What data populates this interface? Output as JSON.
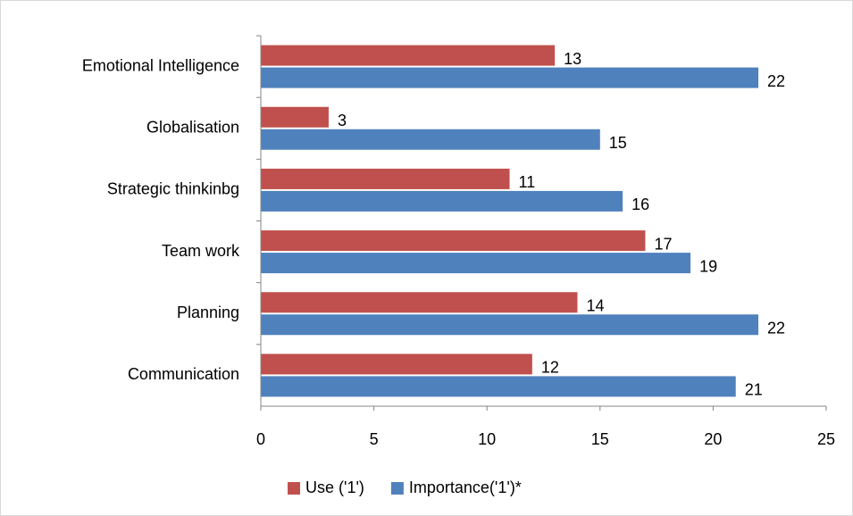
{
  "chart_data": {
    "type": "bar",
    "orientation": "horizontal",
    "categories": [
      "Emotional Intelligence",
      "Globalisation",
      "Strategic thinkinbg",
      "Team work",
      "Planning",
      "Communication"
    ],
    "series": [
      {
        "name": "Use ('1')",
        "color": "#c0504d",
        "values": [
          13,
          3,
          11,
          17,
          14,
          12
        ]
      },
      {
        "name": "Importance('1')*",
        "color": "#4f81bd",
        "values": [
          22,
          15,
          16,
          19,
          22,
          21
        ]
      }
    ],
    "xlim": [
      0,
      25
    ],
    "xticks": [
      0,
      5,
      10,
      15,
      20,
      25
    ],
    "grid": false,
    "legend": "bottom"
  }
}
